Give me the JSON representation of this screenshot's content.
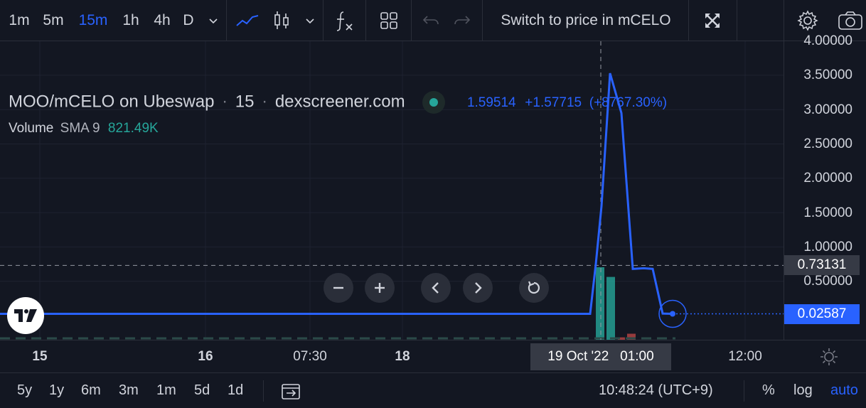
{
  "toolbar": {
    "intervals": [
      "1m",
      "5m",
      "15m",
      "1h",
      "4h",
      "D"
    ],
    "active_interval": "15m",
    "switch_label": "Switch to price in mCELO",
    "icons": [
      "chevron-down-icon",
      "line-chart-icon",
      "candles-icon",
      "function-icon",
      "layout-grid-icon",
      "undo-icon",
      "redo-icon",
      "fullscreen-icon",
      "gear-icon",
      "camera-icon"
    ]
  },
  "legend": {
    "symbol": "MOO/mCELO on Ubeswap",
    "sep1": "·",
    "interval": "15",
    "sep2": "·",
    "source": "dexscreener.com",
    "price": "1.59514",
    "change": "+1.57715",
    "change_pct": "(+8767.30%)",
    "volume_label": "Volume",
    "volume_sma": "SMA 9",
    "volume_value": "821.49K"
  },
  "price_axis": {
    "ticks": [
      "4.00000",
      "3.50000",
      "3.00000",
      "2.50000",
      "2.00000",
      "1.50000",
      "1.00000",
      "0.50000"
    ],
    "crosshair_label": "0.73131",
    "last_price_label": "0.02587"
  },
  "time_axis": {
    "ticks": [
      {
        "label": "15",
        "bold": true
      },
      {
        "label": "16",
        "bold": true
      },
      {
        "label": "07:30",
        "bold": false
      },
      {
        "label": "18",
        "bold": true
      },
      {
        "label": "12:00",
        "bold": false
      }
    ],
    "crosshair_label": "19 Oct '22   01:00"
  },
  "bottom_bar": {
    "ranges": [
      "5y",
      "1y",
      "6m",
      "3m",
      "1m",
      "5d",
      "1d"
    ],
    "clock": "10:48:24 (UTC+9)",
    "percent": "%",
    "log": "log",
    "auto": "auto"
  },
  "colors": {
    "background": "#131722",
    "line": "#2962ff",
    "accent": "#2962ff",
    "up": "#26a69a",
    "down": "#ef5350",
    "grid": "#1e2230",
    "crosshair_label_bg": "#363a45"
  },
  "chart_data": {
    "type": "line",
    "ylim": [
      0,
      4.0
    ],
    "grid": true,
    "crosshair_y": 0.73131,
    "last_price": 0.02587,
    "series": [
      {
        "values": [
          0.02587,
          0.02587,
          0.02587,
          0.02587,
          0.02587,
          0.02587,
          0.02587,
          0.75,
          1.59514,
          3.53,
          2.95,
          0.68,
          0.69,
          0.68,
          0.03,
          0.02587
        ]
      }
    ],
    "volume": [
      {
        "value": 0.6,
        "dir": "up"
      },
      {
        "value": 0.52,
        "dir": "up"
      },
      {
        "value": 0.05,
        "dir": "down"
      },
      {
        "value": 0.02,
        "dir": "down"
      }
    ]
  }
}
